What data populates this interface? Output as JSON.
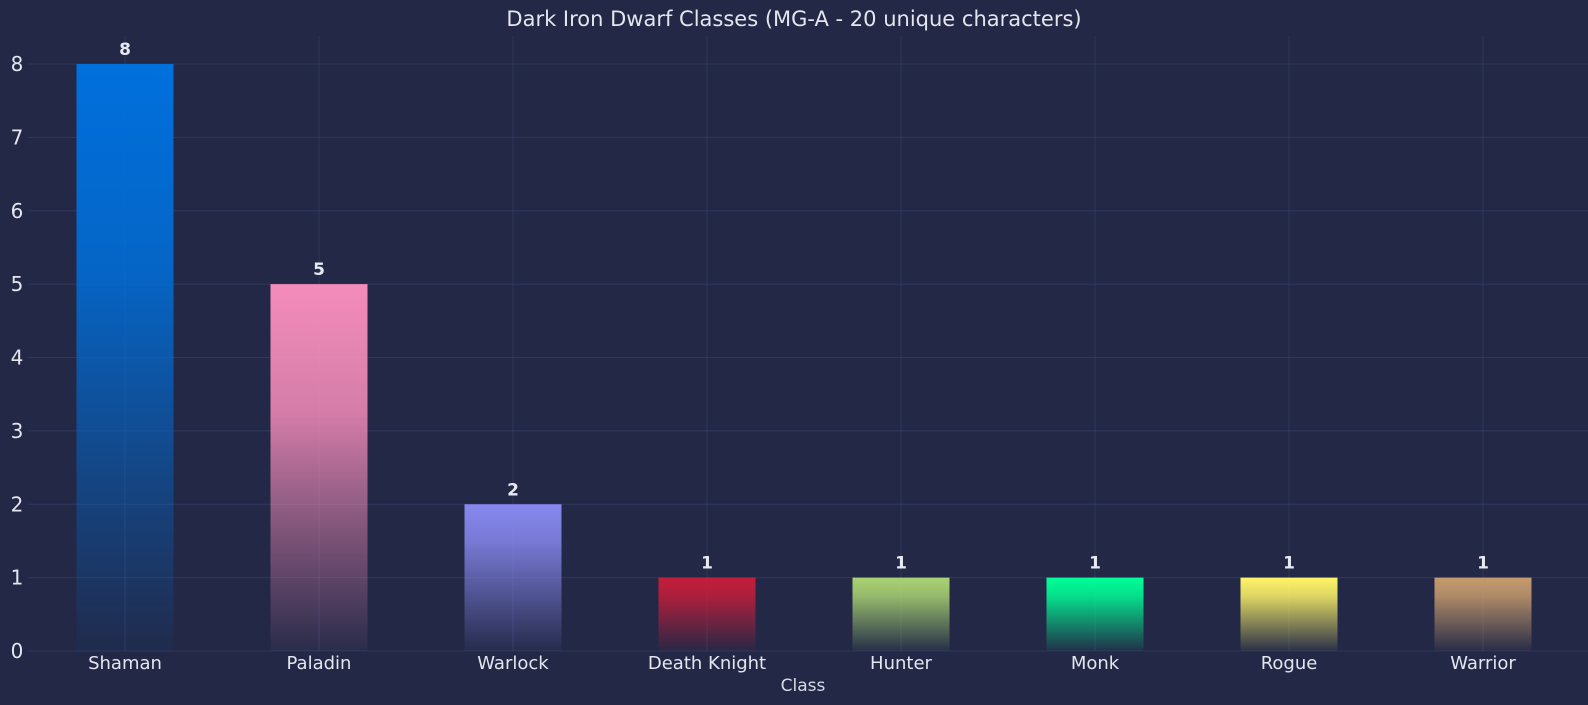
{
  "chart_data": {
    "type": "bar",
    "title": "Dark Iron Dwarf Classes (MG-A - 20 unique characters)",
    "xlabel": "Class",
    "ylabel": "",
    "categories": [
      "Shaman",
      "Paladin",
      "Warlock",
      "Death Knight",
      "Hunter",
      "Monk",
      "Rogue",
      "Warrior"
    ],
    "values": [
      8,
      5,
      2,
      1,
      1,
      1,
      1,
      1
    ],
    "colors": [
      "#0070DD",
      "#F48CBA",
      "#8788EE",
      "#C41E3A",
      "#AAD372",
      "#00FF98",
      "#FFF468",
      "#C69B6D"
    ],
    "ylim": [
      0,
      8
    ],
    "yticks": [
      0,
      1,
      2,
      3,
      4,
      5,
      6,
      7,
      8
    ],
    "grid": true,
    "data_labels": true,
    "background": "#222846"
  }
}
